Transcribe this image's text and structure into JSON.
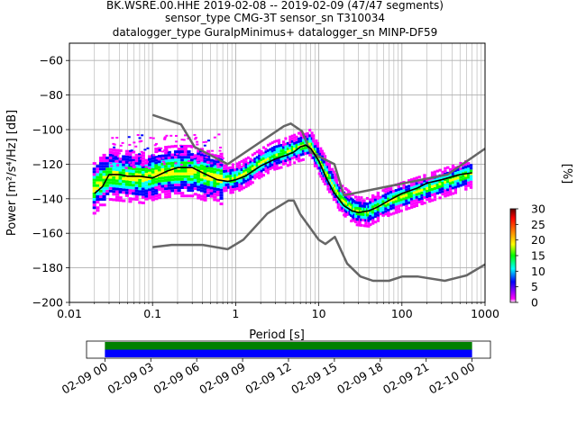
{
  "chart_data": {
    "type": "heatmap",
    "title_lines": [
      "BK.WSRE.00.HHE   2019-02-08 -- 2019-02-09  (47/47 segments)",
      "sensor_type CMG-3T sensor_sn T310034",
      "datalogger_type GuralpMinimus+ datalogger_sn MINP-DF59"
    ],
    "xlabel": "Period [s]",
    "ylabel": "Power [m²/s⁴/Hz] [dB]",
    "xscale": "log",
    "xlim": [
      0.01,
      1000
    ],
    "ylim": [
      -200,
      -50
    ],
    "grid": true,
    "x_ticks": [
      {
        "value": 0.01,
        "label": "0.01"
      },
      {
        "value": 0.1,
        "label": "0.1"
      },
      {
        "value": 1,
        "label": "1"
      },
      {
        "value": 10,
        "label": "10"
      },
      {
        "value": 100,
        "label": "100"
      },
      {
        "value": 1000,
        "label": "1000"
      }
    ],
    "y_ticks": [
      {
        "value": -60,
        "label": "−60"
      },
      {
        "value": -80,
        "label": "−80"
      },
      {
        "value": -100,
        "label": "−100"
      },
      {
        "value": -120,
        "label": "−120"
      },
      {
        "value": -140,
        "label": "−140"
      },
      {
        "value": -160,
        "label": "−160"
      },
      {
        "value": -180,
        "label": "−180"
      },
      {
        "value": -200,
        "label": "−200"
      }
    ],
    "colorbar": {
      "label": "[%]",
      "range": [
        0,
        30
      ],
      "ticks": [
        {
          "value": 0,
          "label": "0"
        },
        {
          "value": 5,
          "label": "5"
        },
        {
          "value": 10,
          "label": "10"
        },
        {
          "value": 15,
          "label": "15"
        },
        {
          "value": 20,
          "label": "20"
        },
        {
          "value": 25,
          "label": "25"
        },
        {
          "value": 30,
          "label": "30"
        }
      ],
      "colors": [
        "#ffffff",
        "#ff00ff",
        "#0000ff",
        "#00ffff",
        "#00ff00",
        "#ffff00",
        "#ff8000",
        "#ff0000",
        "#600000"
      ]
    },
    "mode_line": {
      "color": "#000000",
      "points": [
        [
          0.02,
          -137
        ],
        [
          0.025,
          -133
        ],
        [
          0.03,
          -126
        ],
        [
          0.04,
          -126
        ],
        [
          0.05,
          -127
        ],
        [
          0.07,
          -127
        ],
        [
          0.1,
          -128
        ],
        [
          0.15,
          -124
        ],
        [
          0.2,
          -122
        ],
        [
          0.3,
          -122
        ],
        [
          0.4,
          -125
        ],
        [
          0.6,
          -129
        ],
        [
          0.8,
          -130
        ],
        [
          1.0,
          -129
        ],
        [
          1.3,
          -127
        ],
        [
          2,
          -121
        ],
        [
          3,
          -117
        ],
        [
          4,
          -115
        ],
        [
          5,
          -113
        ],
        [
          6,
          -110
        ],
        [
          7,
          -109
        ],
        [
          8,
          -111
        ],
        [
          10,
          -118
        ],
        [
          12,
          -127
        ],
        [
          15,
          -136
        ],
        [
          20,
          -144
        ],
        [
          25,
          -147
        ],
        [
          30,
          -148
        ],
        [
          40,
          -147
        ],
        [
          50,
          -145
        ],
        [
          70,
          -141
        ],
        [
          100,
          -137
        ],
        [
          150,
          -134
        ],
        [
          200,
          -131
        ],
        [
          300,
          -129
        ],
        [
          500,
          -126
        ],
        [
          700,
          -125
        ]
      ]
    },
    "noise_models": {
      "color": "#666666",
      "high": [
        [
          0.1,
          -91.5
        ],
        [
          0.22,
          -97
        ],
        [
          0.32,
          -110
        ],
        [
          0.8,
          -120
        ],
        [
          3.8,
          -98
        ],
        [
          4.6,
          -96.5
        ],
        [
          6.3,
          -101
        ],
        [
          7.9,
          -113
        ],
        [
          15.4,
          -120
        ],
        [
          20,
          -138
        ],
        [
          354.8,
          -126
        ],
        [
          1000,
          -111
        ]
      ],
      "low": [
        [
          0.1,
          -168
        ],
        [
          0.17,
          -166.7
        ],
        [
          0.4,
          -166.7
        ],
        [
          0.8,
          -169.2
        ],
        [
          1.24,
          -163.7
        ],
        [
          2.4,
          -148.6
        ],
        [
          4.3,
          -141.1
        ],
        [
          5.0,
          -141.1
        ],
        [
          6.0,
          -149
        ],
        [
          10.0,
          -163.8
        ],
        [
          12.0,
          -166.2
        ],
        [
          15.6,
          -162.1
        ],
        [
          21.9,
          -177.5
        ],
        [
          31.6,
          -185
        ],
        [
          45,
          -187.5
        ],
        [
          70,
          -187.5
        ],
        [
          101,
          -185
        ],
        [
          154,
          -185
        ],
        [
          328,
          -187.5
        ],
        [
          600,
          -184.4
        ],
        [
          1000,
          -178
        ]
      ]
    },
    "density_bands": [
      {
        "x": [
          0.019,
          0.7
        ],
        "center": [
          -134,
          -126,
          -127,
          -128,
          -125,
          -124,
          -124,
          -127,
          -129
        ],
        "spread": 9,
        "level": 3
      },
      {
        "x": [
          0.7,
          8
        ],
        "center": [
          -129,
          -128,
          -124,
          -119,
          -115,
          -113,
          -110,
          -108
        ],
        "spread": 5,
        "level": 2
      },
      {
        "x": [
          8,
          40
        ],
        "center": [
          -110,
          -125,
          -140,
          -147,
          -148
        ],
        "spread": 5,
        "level": 2
      },
      {
        "x": [
          40,
          700
        ],
        "center": [
          -147,
          -141,
          -137,
          -133,
          -129,
          -125
        ],
        "spread": 5,
        "level": 2
      }
    ]
  },
  "timeline": {
    "tick_labels": [
      "02-09 00",
      "02-09 03",
      "02-09 06",
      "02-09 09",
      "02-09 12",
      "02-09 15",
      "02-09 18",
      "02-09 21",
      "02-10 00"
    ],
    "tick_hours": [
      0,
      3,
      6,
      9,
      12,
      15,
      18,
      21,
      24
    ],
    "range_hours": [
      -1.2,
      25.2
    ],
    "data_hours": [
      0,
      24
    ],
    "top_color": "#008000",
    "bottom_color": "#0000ff"
  }
}
